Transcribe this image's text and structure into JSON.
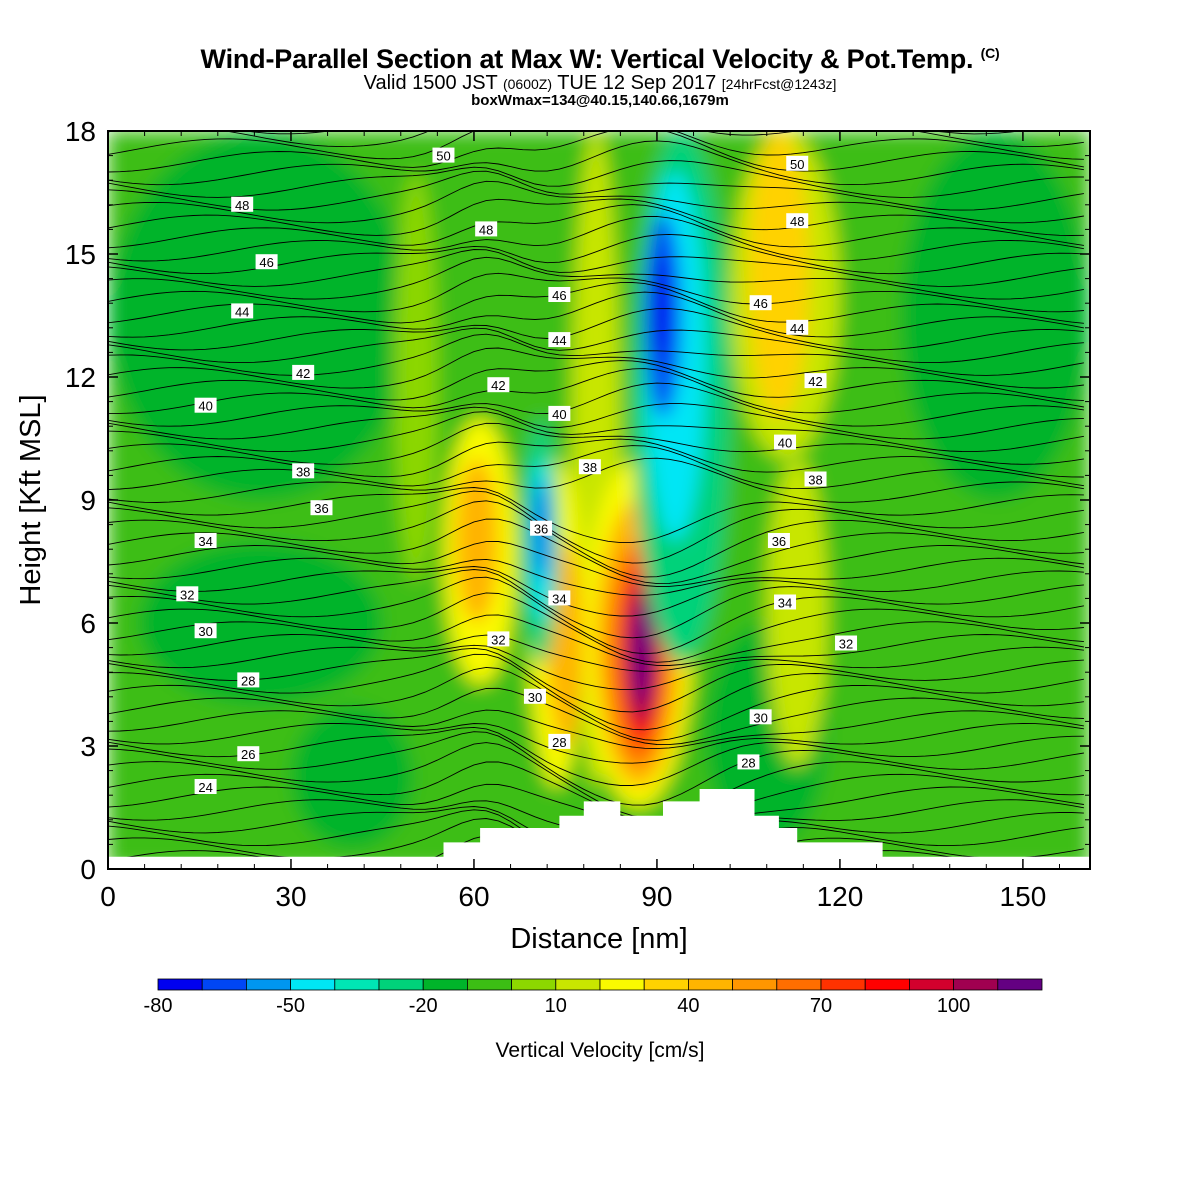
{
  "titles": {
    "main": "Wind-Parallel Section at Max W: Vertical Velocity & Pot.Temp.",
    "copyright": "(C)",
    "valid_prefix": "Valid 1500 JST",
    "valid_z": "(0600Z)",
    "valid_date": "TUE 12 Sep 2017",
    "forecast": "[24hrFcst@1243z]",
    "boxwmax": "boxWmax=134@40.15,140.66,1679m"
  },
  "chart_data": {
    "type": "heatmap",
    "title": "Wind-Parallel Section at Max W: Vertical Velocity & Pot.Temp.",
    "xlabel": "Distance [nm]",
    "ylabel": "Height [Kft MSL]",
    "xlim": [
      0,
      161
    ],
    "ylim": [
      0,
      18
    ],
    "x_ticks": [
      0,
      30,
      60,
      90,
      120,
      150
    ],
    "y_ticks": [
      0,
      3,
      6,
      9,
      12,
      15,
      18
    ],
    "grid": false,
    "colorbar": {
      "label": "Vertical Velocity [cm/s]",
      "min": -80,
      "max": 120,
      "step": 10,
      "tick_labels": [
        "-80",
        "-50",
        "-20",
        "10",
        "40",
        "70",
        "100"
      ],
      "tick_values": [
        -80,
        -50,
        -20,
        10,
        40,
        70,
        100
      ],
      "colors": [
        "#0000f0",
        "#0046f5",
        "#0096f0",
        "#00e6f5",
        "#00e6b4",
        "#00d27a",
        "#00b42a",
        "#3cbe14",
        "#8cd700",
        "#c8e600",
        "#fafa00",
        "#ffd200",
        "#ffb400",
        "#ff9600",
        "#ff6e00",
        "#ff3200",
        "#ff0000",
        "#d2002d",
        "#a00050",
        "#640082"
      ]
    },
    "vertical_velocity_cells": [
      {
        "x0": 0,
        "x1": 161,
        "z0": 0,
        "z1": 18,
        "w": -10
      },
      {
        "x0": 0,
        "x1": 50,
        "z0": 9,
        "z1": 18,
        "w": -20
      },
      {
        "x0": 130,
        "x1": 161,
        "z0": 9,
        "z1": 18,
        "w": -20
      },
      {
        "x0": 5,
        "x1": 45,
        "z0": 4,
        "z1": 8,
        "w": -20
      },
      {
        "x0": 30,
        "x1": 50,
        "z0": 0.5,
        "z1": 4,
        "w": -20
      },
      {
        "x0": 98,
        "x1": 118,
        "z0": 0.5,
        "z1": 6,
        "w": -20
      },
      {
        "x0": 47,
        "x1": 54,
        "z0": 7,
        "z1": 17,
        "w": 0
      },
      {
        "x0": 76,
        "x1": 84,
        "z0": 2,
        "z1": 18,
        "w": 10
      },
      {
        "x0": 102,
        "x1": 120,
        "z0": 10,
        "z1": 18,
        "w": 10
      },
      {
        "x0": 108,
        "x1": 118,
        "z0": 2.5,
        "z1": 10,
        "w": 10
      },
      {
        "x0": 55,
        "x1": 67,
        "z0": 4.5,
        "z1": 11,
        "w": 20
      },
      {
        "x0": 57,
        "x1": 64,
        "z0": 6,
        "z1": 10,
        "w": 40
      },
      {
        "x0": 69,
        "x1": 78,
        "z0": 2,
        "z1": 10,
        "w": 20
      },
      {
        "x0": 72,
        "x1": 78,
        "z0": 3,
        "z1": 8,
        "w": 40
      },
      {
        "x0": 78,
        "x1": 96,
        "z0": 1.5,
        "z1": 10,
        "w": 20
      },
      {
        "x0": 80,
        "x1": 94,
        "z0": 2,
        "z1": 9,
        "w": 40
      },
      {
        "x0": 82,
        "x1": 92,
        "z0": 2.5,
        "z1": 8,
        "w": 60
      },
      {
        "x0": 84,
        "x1": 91,
        "z0": 3,
        "z1": 7.5,
        "w": 80
      },
      {
        "x0": 85,
        "x1": 90,
        "z0": 3.5,
        "z1": 7,
        "w": 100
      },
      {
        "x0": 86,
        "x1": 89,
        "z0": 4,
        "z1": 6.5,
        "w": 120
      },
      {
        "x0": 105,
        "x1": 115,
        "z0": 11,
        "z1": 18,
        "w": 30
      },
      {
        "x0": 68,
        "x1": 74,
        "z0": 5,
        "z1": 11,
        "w": -30
      },
      {
        "x0": 69,
        "x1": 73,
        "z0": 6,
        "z1": 10,
        "w": -50
      },
      {
        "x0": 70,
        "x1": 72,
        "z0": 7,
        "z1": 9.5,
        "w": -80
      },
      {
        "x0": 86,
        "x1": 102,
        "z0": 5,
        "z1": 18,
        "w": -30
      },
      {
        "x0": 88,
        "x1": 98,
        "z0": 8,
        "z1": 17,
        "w": -50
      },
      {
        "x0": 88,
        "x1": 94,
        "z0": 11,
        "z1": 16,
        "w": -70
      },
      {
        "x0": 89,
        "x1": 92,
        "z0": 12.5,
        "z1": 15,
        "w": -80
      }
    ],
    "terrain": [
      [
        0,
        0.3
      ],
      [
        55,
        0.3
      ],
      [
        55,
        0.65
      ],
      [
        60,
        0.65
      ],
      [
        60,
        0.65
      ],
      [
        61,
        0.65
      ],
      [
        61,
        1.0
      ],
      [
        74,
        1.0
      ],
      [
        74,
        1.3
      ],
      [
        78,
        1.3
      ],
      [
        78,
        1.65
      ],
      [
        84,
        1.65
      ],
      [
        84,
        1.3
      ],
      [
        91,
        1.3
      ],
      [
        91,
        1.65
      ],
      [
        97,
        1.65
      ],
      [
        97,
        1.95
      ],
      [
        106,
        1.95
      ],
      [
        106,
        1.3
      ],
      [
        110,
        1.3
      ],
      [
        110,
        1.0
      ],
      [
        113,
        1.0
      ],
      [
        113,
        0.65
      ],
      [
        127,
        0.65
      ],
      [
        127,
        0.3
      ],
      [
        161,
        0.3
      ]
    ],
    "theta_labels": [
      {
        "text": "50",
        "x": 55,
        "z": 17.4
      },
      {
        "text": "50",
        "x": 113,
        "z": 17.2
      },
      {
        "text": "48",
        "x": 22,
        "z": 16.2
      },
      {
        "text": "48",
        "x": 62,
        "z": 15.6
      },
      {
        "text": "48",
        "x": 113,
        "z": 15.8
      },
      {
        "text": "46",
        "x": 26,
        "z": 14.8
      },
      {
        "text": "46",
        "x": 74,
        "z": 14.0
      },
      {
        "text": "46",
        "x": 107,
        "z": 13.8
      },
      {
        "text": "44",
        "x": 22,
        "z": 13.6
      },
      {
        "text": "44",
        "x": 74,
        "z": 12.9
      },
      {
        "text": "44",
        "x": 113,
        "z": 13.2
      },
      {
        "text": "42",
        "x": 32,
        "z": 12.1
      },
      {
        "text": "42",
        "x": 64,
        "z": 11.8
      },
      {
        "text": "42",
        "x": 116,
        "z": 11.9
      },
      {
        "text": "40",
        "x": 16,
        "z": 11.3
      },
      {
        "text": "40",
        "x": 74,
        "z": 11.1
      },
      {
        "text": "40",
        "x": 111,
        "z": 10.4
      },
      {
        "text": "38",
        "x": 32,
        "z": 9.7
      },
      {
        "text": "38",
        "x": 79,
        "z": 9.8
      },
      {
        "text": "38",
        "x": 116,
        "z": 9.5
      },
      {
        "text": "36",
        "x": 35,
        "z": 8.8
      },
      {
        "text": "36",
        "x": 71,
        "z": 8.3
      },
      {
        "text": "36",
        "x": 110,
        "z": 8.0
      },
      {
        "text": "34",
        "x": 16,
        "z": 8.0
      },
      {
        "text": "34",
        "x": 74,
        "z": 6.6
      },
      {
        "text": "34",
        "x": 111,
        "z": 6.5
      },
      {
        "text": "32",
        "x": 13,
        "z": 6.7
      },
      {
        "text": "32",
        "x": 64,
        "z": 5.6
      },
      {
        "text": "32",
        "x": 121,
        "z": 5.5
      },
      {
        "text": "30",
        "x": 16,
        "z": 5.8
      },
      {
        "text": "30",
        "x": 70,
        "z": 4.2
      },
      {
        "text": "30",
        "x": 107,
        "z": 3.7
      },
      {
        "text": "28",
        "x": 23,
        "z": 4.6
      },
      {
        "text": "28",
        "x": 74,
        "z": 3.1
      },
      {
        "text": "28",
        "x": 105,
        "z": 2.6
      },
      {
        "text": "26",
        "x": 23,
        "z": 2.8
      },
      {
        "text": "24",
        "x": 16,
        "z": 2.0
      }
    ]
  }
}
